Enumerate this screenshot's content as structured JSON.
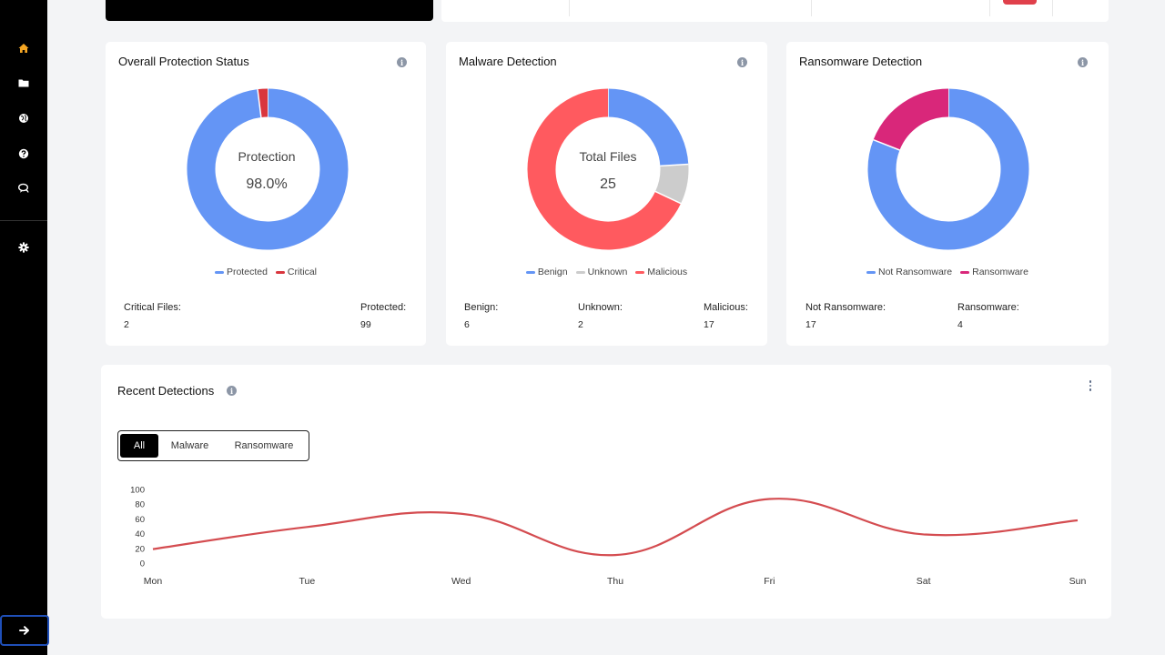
{
  "sidebar": {
    "items": [
      {
        "icon": "home-icon",
        "active": true
      },
      {
        "icon": "folder-icon"
      },
      {
        "icon": "globe-icon"
      },
      {
        "icon": "help-icon"
      },
      {
        "icon": "chat-icon"
      },
      {
        "icon": "gear-icon"
      }
    ],
    "expand_icon": "arrow-right-icon"
  },
  "colors": {
    "blue": "#6495f5",
    "red": "#ff5a5f",
    "dark_red": "#d9363e",
    "gray": "#cccccc",
    "magenta": "#d9277a",
    "line": "#d44c50",
    "accent": "#f5a623"
  },
  "cards": {
    "protection": {
      "title": "Overall Protection Status",
      "center_label": "Protection",
      "center_value": "98.0%",
      "legend": [
        "Protected",
        "Critical"
      ],
      "stats": [
        {
          "label": "Critical Files:",
          "value": "2"
        },
        {
          "label": "Protected:",
          "value": "99"
        }
      ]
    },
    "malware": {
      "title": "Malware Detection",
      "center_label": "Total Files",
      "center_value": "25",
      "legend": [
        "Benign",
        "Unknown",
        "Malicious"
      ],
      "stats": [
        {
          "label": "Benign:",
          "value": "6"
        },
        {
          "label": "Unknown:",
          "value": "2"
        },
        {
          "label": "Malicious:",
          "value": "17"
        }
      ]
    },
    "ransomware": {
      "title": "Ransomware Detection",
      "legend": [
        "Not Ransomware",
        "Ransomware"
      ],
      "stats": [
        {
          "label": "Not Ransomware:",
          "value": "17"
        },
        {
          "label": "Ransomware:",
          "value": "4"
        }
      ]
    }
  },
  "recent": {
    "title": "Recent Detections",
    "tabs": [
      "All",
      "Malware",
      "Ransomware"
    ],
    "active_tab": "All"
  },
  "chart_data": {
    "type": "line",
    "title": "Recent Detections",
    "categories": [
      "Mon",
      "Tue",
      "Wed",
      "Thu",
      "Fri",
      "Sat",
      "Sun"
    ],
    "values": [
      19,
      49,
      67,
      11,
      87,
      39,
      58
    ],
    "yticks": [
      "0",
      "20",
      "40",
      "60",
      "80",
      "100"
    ],
    "ylim": [
      0,
      100
    ],
    "xlabel": "",
    "ylabel": ""
  },
  "donuts": {
    "protection": [
      99,
      2
    ],
    "malware": [
      6,
      2,
      17
    ],
    "ransomware": [
      17,
      4
    ]
  }
}
